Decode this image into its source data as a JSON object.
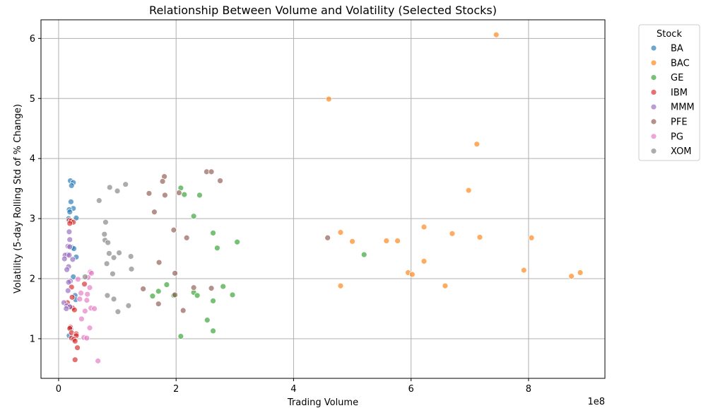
{
  "chart_data": {
    "type": "scatter",
    "title": "Relationship Between Volume and Volatility (Selected Stocks)",
    "xlabel": "Trading Volume",
    "ylabel": "Volatility (5-day Rolling Std of % Change)",
    "x_offset_label": "1e8",
    "x_unit": "1e8 shares",
    "xlim": [
      -0.3,
      9.3
    ],
    "ylim": [
      0.34,
      6.31
    ],
    "xticks": [
      0,
      2,
      4,
      6,
      8
    ],
    "yticks": [
      1,
      2,
      3,
      4,
      5,
      6
    ],
    "grid": true,
    "legend": {
      "title": "Stock",
      "position": "outside-right-top"
    },
    "series": [
      {
        "name": "BA",
        "color": "#1f77b4",
        "points": [
          [
            0.2,
            3.63
          ],
          [
            0.25,
            3.6
          ],
          [
            0.22,
            3.55
          ],
          [
            0.21,
            3.28
          ],
          [
            0.25,
            3.17
          ],
          [
            0.18,
            3.15
          ],
          [
            0.19,
            3.11
          ],
          [
            0.3,
            3.01
          ],
          [
            0.17,
            3.0
          ],
          [
            0.23,
            2.52
          ],
          [
            0.26,
            2.5
          ],
          [
            0.3,
            2.36
          ],
          [
            0.25,
            2.03
          ],
          [
            0.28,
            1.72
          ],
          [
            0.29,
            1.65
          ],
          [
            0.19,
            1.52
          ],
          [
            0.18,
            1.05
          ],
          [
            0.21,
            1.17
          ]
        ]
      },
      {
        "name": "BAC",
        "color": "#ff7f0e",
        "points": [
          [
            7.45,
            6.06
          ],
          [
            4.6,
            4.99
          ],
          [
            7.12,
            4.24
          ],
          [
            6.98,
            3.47
          ],
          [
            6.22,
            2.86
          ],
          [
            4.8,
            2.77
          ],
          [
            6.7,
            2.75
          ],
          [
            7.17,
            2.69
          ],
          [
            8.05,
            2.68
          ],
          [
            5.0,
            2.62
          ],
          [
            5.58,
            2.63
          ],
          [
            5.77,
            2.63
          ],
          [
            6.22,
            2.29
          ],
          [
            7.92,
            2.14
          ],
          [
            8.88,
            2.1
          ],
          [
            5.95,
            2.1
          ],
          [
            6.02,
            2.07
          ],
          [
            8.73,
            2.04
          ],
          [
            4.8,
            1.88
          ],
          [
            6.58,
            1.88
          ]
        ]
      },
      {
        "name": "GE",
        "color": "#2ca02c",
        "points": [
          [
            2.08,
            3.51
          ],
          [
            2.14,
            3.4
          ],
          [
            2.4,
            3.39
          ],
          [
            2.3,
            3.04
          ],
          [
            2.63,
            2.76
          ],
          [
            3.04,
            2.61
          ],
          [
            2.7,
            2.51
          ],
          [
            5.2,
            2.4
          ],
          [
            1.84,
            1.9
          ],
          [
            2.8,
            1.87
          ],
          [
            1.7,
            1.79
          ],
          [
            2.3,
            1.77
          ],
          [
            1.6,
            1.71
          ],
          [
            2.36,
            1.72
          ],
          [
            2.96,
            1.73
          ],
          [
            1.96,
            1.72
          ],
          [
            2.63,
            1.63
          ],
          [
            2.53,
            1.31
          ],
          [
            2.63,
            1.13
          ],
          [
            2.08,
            1.04
          ]
        ]
      },
      {
        "name": "IBM",
        "color": "#d62728",
        "points": [
          [
            0.18,
            2.97
          ],
          [
            0.21,
            2.96
          ],
          [
            0.25,
            2.94
          ],
          [
            0.19,
            2.92
          ],
          [
            0.44,
            1.91
          ],
          [
            0.22,
            1.86
          ],
          [
            0.23,
            1.69
          ],
          [
            0.15,
            1.6
          ],
          [
            0.2,
            1.53
          ],
          [
            0.24,
            1.51
          ],
          [
            0.27,
            1.48
          ],
          [
            0.2,
            1.19
          ],
          [
            0.19,
            1.17
          ],
          [
            0.22,
            1.1
          ],
          [
            0.3,
            1.08
          ],
          [
            0.3,
            1.05
          ],
          [
            0.22,
            1.01
          ],
          [
            0.26,
            0.99
          ],
          [
            0.28,
            0.96
          ],
          [
            0.32,
            0.85
          ],
          [
            0.28,
            0.65
          ]
        ]
      },
      {
        "name": "MMM",
        "color": "#9467bd",
        "points": [
          [
            0.18,
            2.78
          ],
          [
            0.19,
            2.65
          ],
          [
            0.16,
            2.54
          ],
          [
            0.19,
            2.53
          ],
          [
            0.15,
            2.4
          ],
          [
            0.11,
            2.39
          ],
          [
            0.18,
            2.39
          ],
          [
            0.1,
            2.33
          ],
          [
            0.24,
            2.32
          ],
          [
            0.17,
            2.2
          ],
          [
            0.14,
            2.15
          ],
          [
            0.2,
            1.96
          ],
          [
            0.17,
            1.94
          ],
          [
            0.16,
            1.8
          ],
          [
            0.09,
            1.6
          ],
          [
            0.14,
            1.55
          ],
          [
            0.19,
            1.53
          ],
          [
            0.13,
            1.5
          ]
        ]
      },
      {
        "name": "PFE",
        "color": "#8c564b",
        "points": [
          [
            1.8,
            3.7
          ],
          [
            2.52,
            3.78
          ],
          [
            2.6,
            3.78
          ],
          [
            2.75,
            3.63
          ],
          [
            1.77,
            3.62
          ],
          [
            2.05,
            3.43
          ],
          [
            1.54,
            3.42
          ],
          [
            1.81,
            3.39
          ],
          [
            1.63,
            3.11
          ],
          [
            1.96,
            2.81
          ],
          [
            2.18,
            2.68
          ],
          [
            4.58,
            2.68
          ],
          [
            1.71,
            2.27
          ],
          [
            1.98,
            2.09
          ],
          [
            2.3,
            1.85
          ],
          [
            2.6,
            1.84
          ],
          [
            1.44,
            1.83
          ],
          [
            1.98,
            1.73
          ],
          [
            1.7,
            1.58
          ],
          [
            2.12,
            1.47
          ]
        ]
      },
      {
        "name": "PG",
        "color": "#e377c2",
        "points": [
          [
            0.54,
            2.11
          ],
          [
            0.56,
            2.09
          ],
          [
            0.5,
            2.02
          ],
          [
            0.33,
            1.99
          ],
          [
            0.53,
            1.85
          ],
          [
            0.38,
            1.76
          ],
          [
            0.49,
            1.74
          ],
          [
            0.36,
            1.66
          ],
          [
            0.48,
            1.64
          ],
          [
            0.55,
            1.51
          ],
          [
            0.61,
            1.5
          ],
          [
            0.45,
            1.46
          ],
          [
            0.39,
            1.33
          ],
          [
            0.53,
            1.18
          ],
          [
            0.43,
            1.02
          ],
          [
            0.48,
            1.01
          ],
          [
            0.67,
            0.63
          ]
        ]
      },
      {
        "name": "XOM",
        "color": "#7f7f7f",
        "points": [
          [
            1.14,
            3.57
          ],
          [
            0.87,
            3.52
          ],
          [
            1.0,
            3.46
          ],
          [
            0.69,
            3.3
          ],
          [
            0.8,
            2.94
          ],
          [
            0.78,
            2.74
          ],
          [
            0.79,
            2.64
          ],
          [
            0.84,
            2.6
          ],
          [
            0.86,
            2.42
          ],
          [
            1.03,
            2.43
          ],
          [
            1.23,
            2.37
          ],
          [
            0.94,
            2.35
          ],
          [
            0.82,
            2.25
          ],
          [
            1.24,
            2.16
          ],
          [
            0.92,
            2.08
          ],
          [
            0.45,
            2.03
          ],
          [
            0.83,
            1.72
          ],
          [
            0.94,
            1.66
          ],
          [
            1.19,
            1.55
          ],
          [
            1.01,
            1.45
          ]
        ]
      }
    ]
  }
}
